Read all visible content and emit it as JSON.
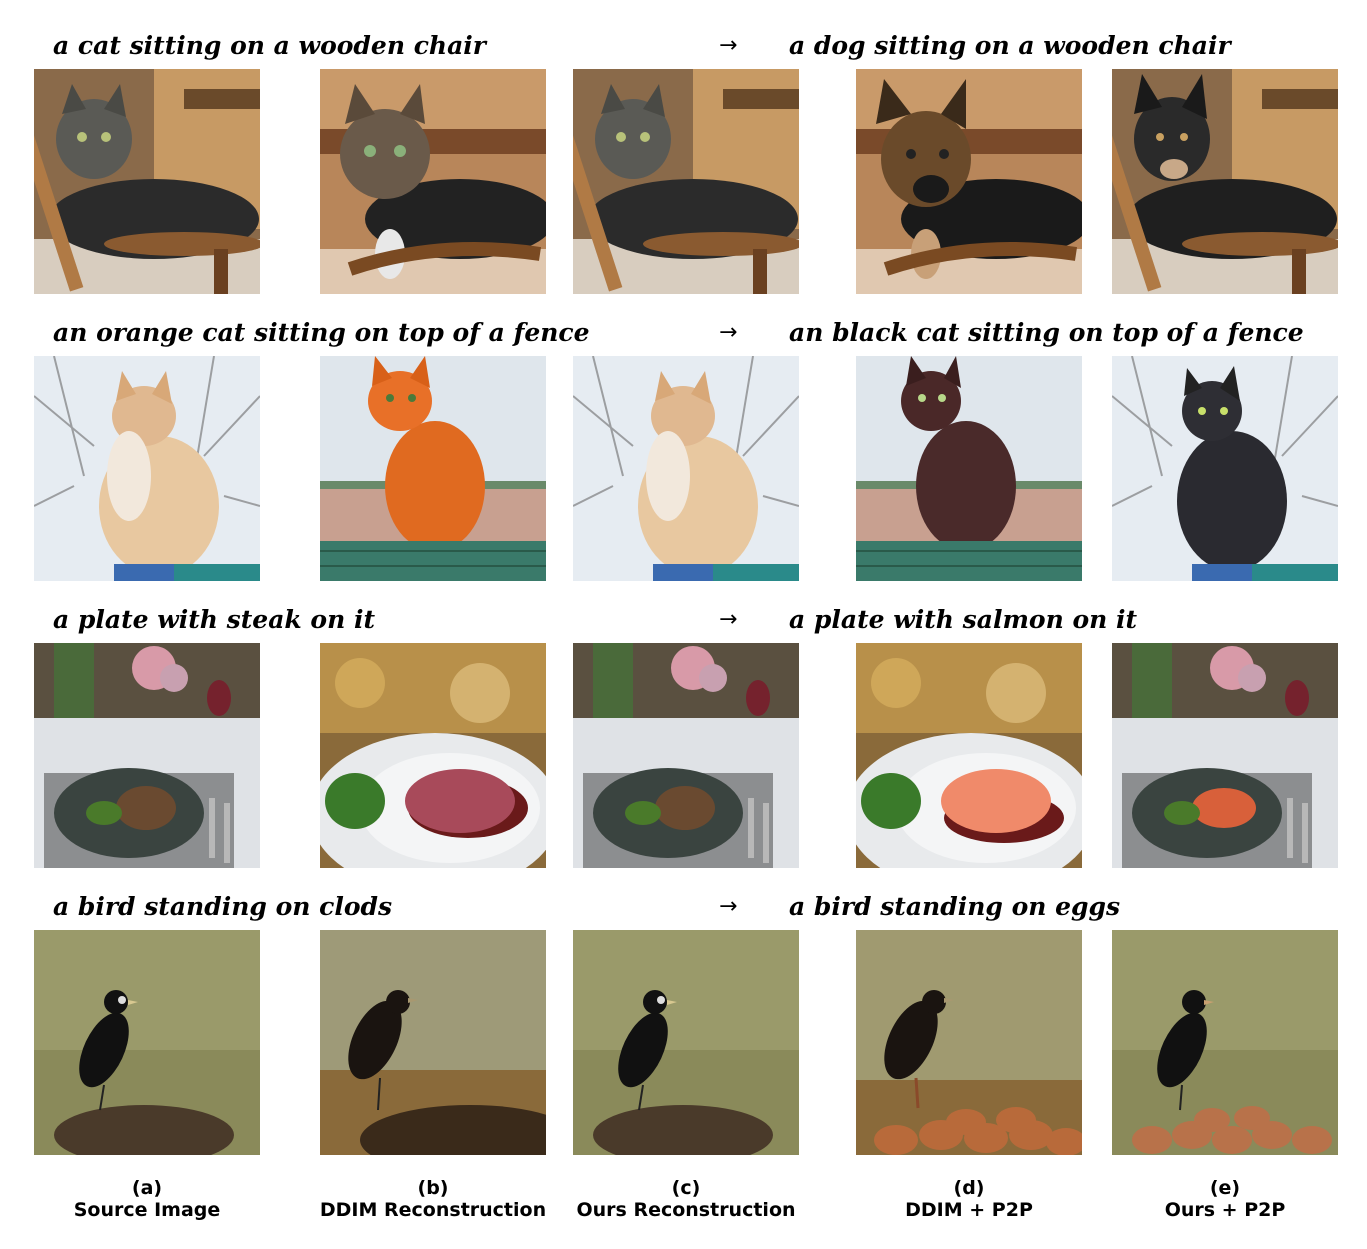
{
  "rows": [
    {
      "source": "a cat sitting on a wooden chair",
      "target": "a dog sitting on a wooden chair",
      "arrow": "→"
    },
    {
      "source": "an orange cat sitting on top of a fence",
      "target": "an black cat sitting on top of a fence",
      "arrow": "→"
    },
    {
      "source": "a plate with steak on it",
      "target": "a plate with salmon on it",
      "arrow": "→"
    },
    {
      "source": "a bird standing on clods",
      "target": "a bird standing on eggs",
      "arrow": "→"
    }
  ],
  "columns": [
    {
      "letter": "(a)",
      "label": "Source Image"
    },
    {
      "letter": "(b)",
      "label": "DDIM Reconstruction"
    },
    {
      "letter": "(c)",
      "label": "Ours Reconstruction"
    },
    {
      "letter": "(d)",
      "label": "DDIM + P2P"
    },
    {
      "letter": "(e)",
      "label": "Ours + P2P"
    }
  ]
}
